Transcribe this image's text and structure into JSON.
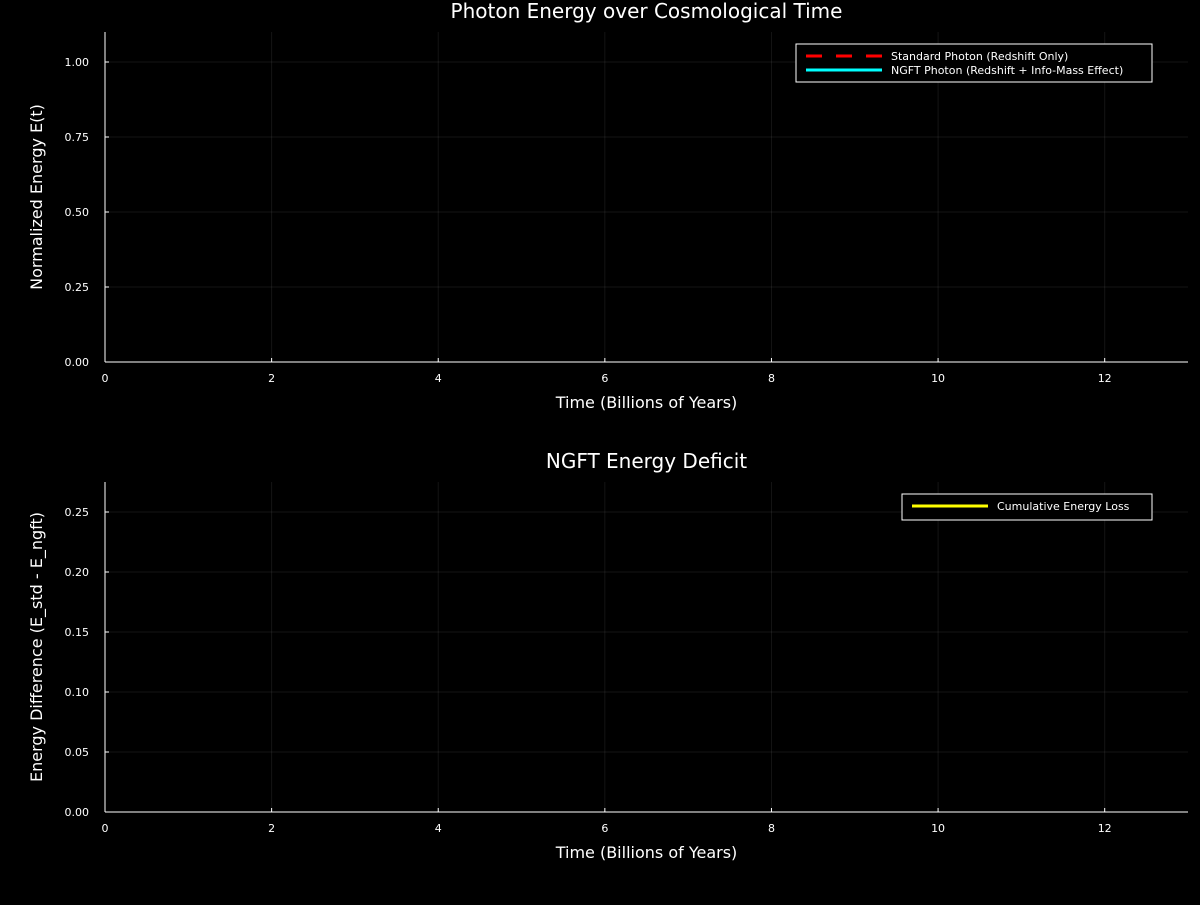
{
  "chart_data": [
    {
      "type": "line",
      "title": "Photon Energy over Cosmological Time",
      "xlabel": "Time (Billions of Years)",
      "ylabel": "Normalized Energy E(t)",
      "xlim": [
        0,
        13
      ],
      "ylim": [
        0,
        1.1
      ],
      "x_ticks": [
        0,
        2,
        4,
        6,
        8,
        10,
        12
      ],
      "x_tick_labels": [
        "0",
        "2",
        "4",
        "6",
        "8",
        "10",
        "12"
      ],
      "y_ticks": [
        0,
        0.25,
        0.5,
        0.75,
        1.0
      ],
      "y_tick_labels": [
        "0.00",
        "0.25",
        "0.50",
        "0.75",
        "1.00"
      ],
      "grid": true,
      "legend_position": "top-right",
      "series": [
        {
          "name": "Standard Photon (Redshift Only)",
          "color": "#ff0000",
          "style": "dashed",
          "x": [],
          "y": []
        },
        {
          "name": "NGFT Photon (Redshift + Info-Mass Effect)",
          "color": "#00ffff",
          "style": "solid",
          "x": [],
          "y": []
        }
      ]
    },
    {
      "type": "line",
      "title": "NGFT Energy Deficit",
      "xlabel": "Time (Billions of Years)",
      "ylabel": "Energy Difference (E_std - E_ngft)",
      "xlim": [
        0,
        13
      ],
      "ylim": [
        0,
        0.275
      ],
      "x_ticks": [
        0,
        2,
        4,
        6,
        8,
        10,
        12
      ],
      "x_tick_labels": [
        "0",
        "2",
        "4",
        "6",
        "8",
        "10",
        "12"
      ],
      "y_ticks": [
        0,
        0.05,
        0.1,
        0.15,
        0.2,
        0.25
      ],
      "y_tick_labels": [
        "0.00",
        "0.05",
        "0.10",
        "0.15",
        "0.20",
        "0.25"
      ],
      "grid": true,
      "legend_position": "top-right",
      "series": [
        {
          "name": "Cumulative Energy Loss",
          "color": "#ffff00",
          "style": "solid",
          "x": [],
          "y": []
        }
      ]
    }
  ]
}
